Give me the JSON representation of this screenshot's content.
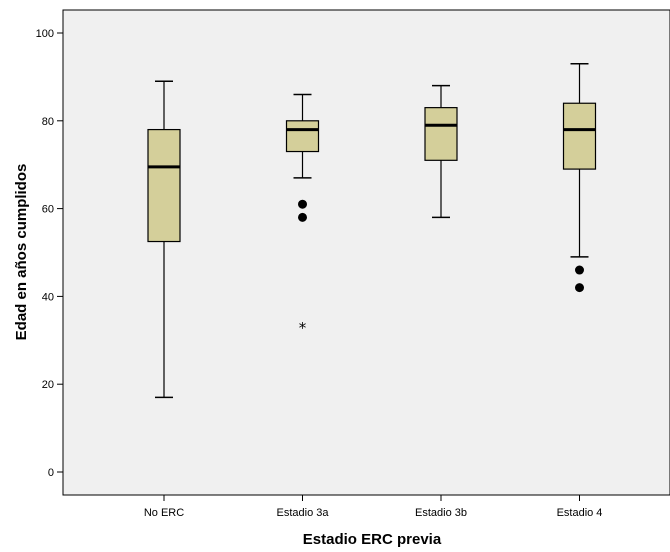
{
  "chart_data": {
    "type": "boxplot",
    "xlabel": "Estadio ERC previa",
    "ylabel": "Edad en años cumplidos",
    "ylim": [
      0,
      100
    ],
    "yticks": [
      0,
      20,
      40,
      60,
      80,
      100
    ],
    "grid": false,
    "categories": [
      "No ERC",
      "Estadio 3a",
      "Estadio 3b",
      "Estadio 4"
    ],
    "boxes": [
      {
        "category": "No ERC",
        "min": 17,
        "q1": 52.5,
        "median": 69.5,
        "q3": 78,
        "max": 89,
        "outliers": [],
        "extremes": []
      },
      {
        "category": "Estadio 3a",
        "min": 67,
        "q1": 73,
        "median": 78,
        "q3": 80,
        "max": 86,
        "outliers": [
          61,
          58
        ],
        "extremes": [
          33
        ]
      },
      {
        "category": "Estadio 3b",
        "min": 58,
        "q1": 71,
        "median": 79,
        "q3": 83,
        "max": 88,
        "outliers": [],
        "extremes": []
      },
      {
        "category": "Estadio 4",
        "min": 49,
        "q1": 69,
        "median": 78,
        "q3": 84,
        "max": 93,
        "outliers": [
          46,
          42
        ],
        "extremes": []
      }
    ]
  },
  "colors": {
    "plot_background": "#f0f0f0",
    "box_fill": "#d4cf9a",
    "stroke": "#000000"
  }
}
